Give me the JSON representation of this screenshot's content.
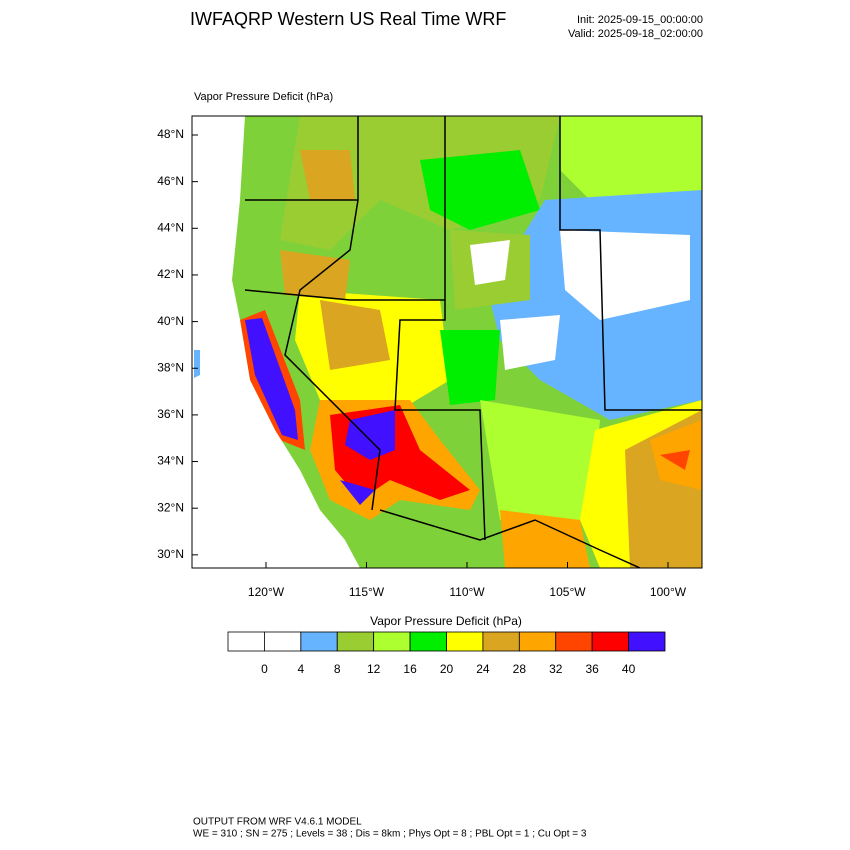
{
  "header": {
    "title": "IWFAQRP Western US Real Time WRF",
    "init": "Init: 2025-09-15_00:00:00",
    "valid": "Valid: 2025-09-18_02:00:00"
  },
  "map": {
    "title": "Vapor Pressure Deficit   (hPa)",
    "lat_labels": [
      "48°N",
      "46°N",
      "44°N",
      "42°N",
      "40°N",
      "38°N",
      "36°N",
      "34°N",
      "32°N",
      "30°N"
    ],
    "lon_labels": [
      "120°W",
      "115°W",
      "110°W",
      "105°W",
      "100°W"
    ]
  },
  "colorbar": {
    "title": "Vapor Pressure Deficit  (hPa)",
    "colors": [
      "#ffffff",
      "#ffffff",
      "#66b3ff",
      "#9acd32",
      "#adff2f",
      "#00ee00",
      "#ffff00",
      "#daa520",
      "#ffa500",
      "#ff4500",
      "#ff0000",
      "#4010ff"
    ],
    "ticks": [
      0,
      4,
      8,
      12,
      16,
      20,
      24,
      28,
      32,
      36,
      40
    ]
  },
  "footer": {
    "line1": "OUTPUT FROM WRF V4.6.1 MODEL",
    "line2": "WE = 310 ; SN = 275 ; Levels = 38 ; Dis = 8km ; Phys Opt = 8 ; PBL Opt = 1 ; Cu Opt = 3"
  }
}
